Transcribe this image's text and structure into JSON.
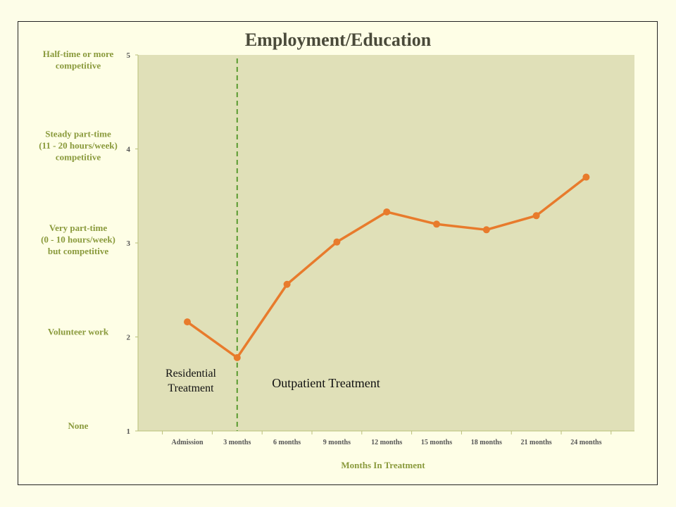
{
  "chart_data": {
    "type": "line",
    "title": "Employment/Education",
    "xlabel": "Months In Treatment",
    "ylabel": "",
    "categories": [
      "Admission",
      "3 months",
      "6 months",
      "9 months",
      "12 months",
      "15 months",
      "18 months",
      "21 months",
      "24 months"
    ],
    "series": [
      {
        "values": [
          2.16,
          1.78,
          2.56,
          3.01,
          3.33,
          3.2,
          3.14,
          3.29,
          3.7
        ],
        "color": "#e87b2c"
      }
    ],
    "ylim": [
      1,
      5
    ],
    "y_ticks": [
      "1",
      "2",
      "3",
      "4",
      "5"
    ],
    "y_category_labels": [
      {
        "value": 5,
        "lines": [
          "Half-time or more",
          "competitive"
        ]
      },
      {
        "value": 4,
        "lines": [
          "Steady part-time",
          "(11 - 20 hours/week)",
          "competitive"
        ]
      },
      {
        "value": 3,
        "lines": [
          "Very part-time",
          "(0 - 10 hours/week)",
          "but competitive"
        ]
      },
      {
        "value": 2,
        "lines": [
          "Volunteer work"
        ]
      },
      {
        "value": 1,
        "lines": [
          "None"
        ]
      }
    ],
    "annotations": [
      {
        "lines": [
          "Residential",
          "Treatment"
        ]
      },
      {
        "lines": [
          "Outpatient Treatment"
        ]
      }
    ],
    "divider_x": "3 months",
    "grid": false,
    "legend": "none",
    "colors": {
      "plot_background": "#e0e0b8",
      "line": "#e87b2c",
      "divider": "#5a9a30",
      "axis_label": "#8a9a3c"
    }
  }
}
